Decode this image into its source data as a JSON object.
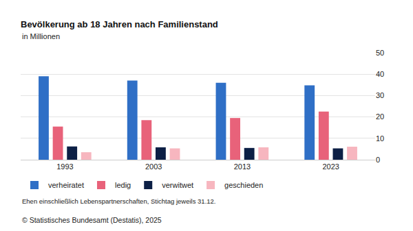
{
  "chart_data": {
    "type": "bar",
    "title": "Bevölkerung ab 18 Jahren nach Familienstand",
    "subtitle": "in Millionen",
    "note": "Ehen einschließlich Lebenspartnerschaften, Stichtag jeweils 31.12.",
    "source": "© Statistisches Bundesamt (Destatis), 2025",
    "categories": [
      "1993",
      "2003",
      "2013",
      "2023"
    ],
    "series": [
      {
        "name": "verheiratet",
        "color": "#2f6fc6",
        "values": [
          39.0,
          37.0,
          36.0,
          34.8
        ]
      },
      {
        "name": "ledig",
        "color": "#e8627a",
        "values": [
          15.5,
          18.5,
          19.5,
          22.5
        ]
      },
      {
        "name": "verwitwet",
        "color": "#0c1f45",
        "values": [
          6.2,
          5.8,
          5.5,
          5.3
        ]
      },
      {
        "name": "geschieden",
        "color": "#f7b6bf",
        "values": [
          3.5,
          5.3,
          5.8,
          6.1
        ]
      }
    ],
    "ylim": [
      0,
      50
    ],
    "yticks": [
      0,
      10,
      20,
      30,
      40,
      50
    ],
    "grid": true,
    "legend": "bottom"
  }
}
